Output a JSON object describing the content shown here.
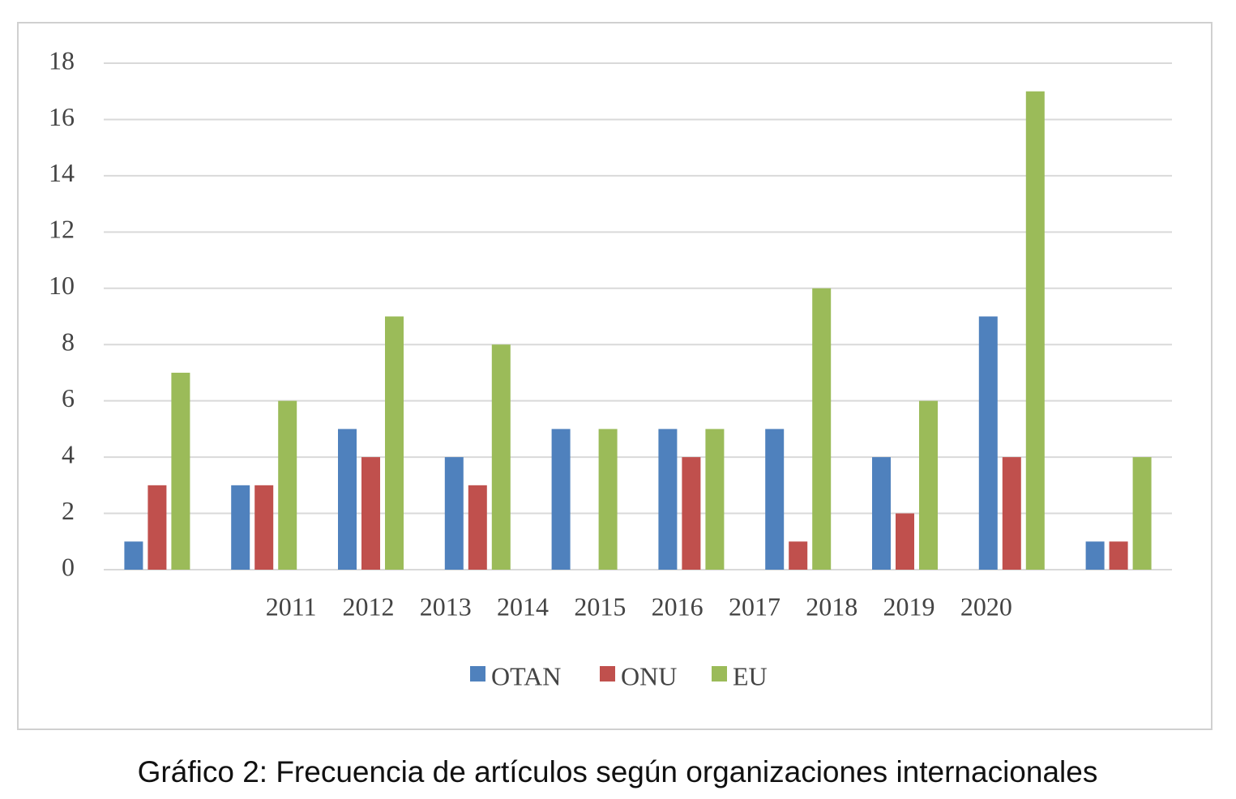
{
  "chart_data": {
    "type": "bar",
    "title": "Gráfico 2: Frecuencia de artículos según organizaciones internacionales",
    "categories": [
      "2011",
      "2012",
      "2013",
      "2014",
      "2015",
      "2016",
      "2017",
      "2018",
      "2019",
      "2020"
    ],
    "series": [
      {
        "name": "OTAN",
        "color": "#4f81bd",
        "values": [
          1,
          3,
          5,
          4,
          5,
          5,
          5,
          4,
          9,
          1
        ]
      },
      {
        "name": "ONU",
        "color": "#c0504d",
        "values": [
          3,
          3,
          4,
          3,
          0,
          4,
          1,
          2,
          4,
          1
        ]
      },
      {
        "name": "EU",
        "color": "#9bbb59",
        "values": [
          7,
          6,
          9,
          8,
          5,
          5,
          10,
          6,
          17,
          4
        ]
      }
    ],
    "ylim": [
      0,
      18
    ],
    "yticks": [
      0,
      2,
      4,
      6,
      8,
      10,
      12,
      14,
      16,
      18
    ],
    "grid": true,
    "legend": "bottom"
  }
}
